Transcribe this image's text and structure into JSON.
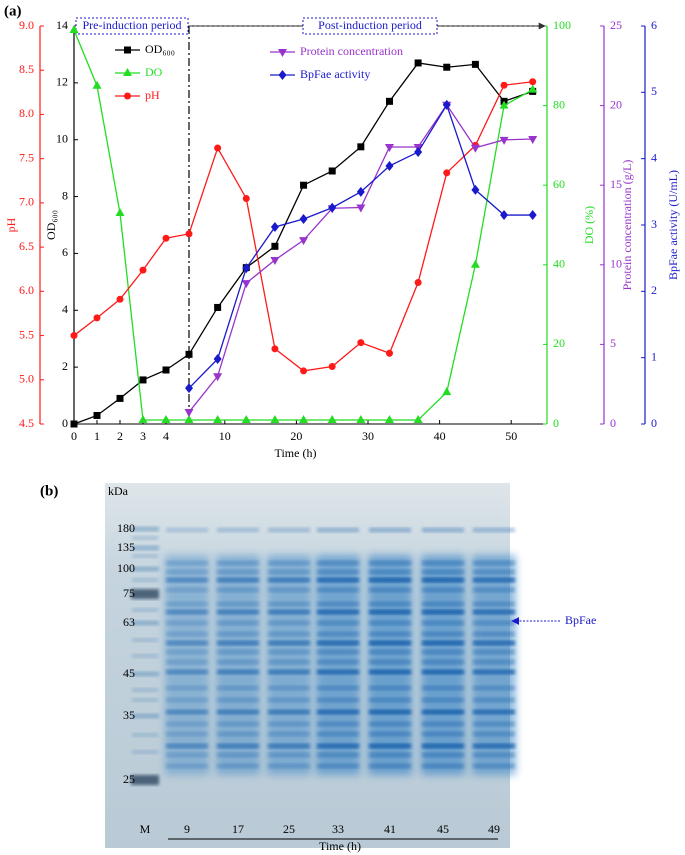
{
  "panel_labels": [
    "(a)",
    "(b)"
  ],
  "chart_data": {
    "type": "line",
    "x": [
      0,
      1,
      2,
      3,
      4,
      5,
      9,
      13,
      17,
      21,
      25,
      29,
      33,
      37,
      41,
      45,
      49,
      53
    ],
    "xlim": [
      0,
      55
    ],
    "x_break": 5,
    "xticks": [
      0,
      1,
      2,
      3,
      4,
      10,
      20,
      30,
      40,
      50
    ],
    "xlabel": "Time (h)",
    "axes": [
      {
        "id": "ph",
        "label": "pH",
        "color": "#ff1a1a",
        "lim": [
          4.5,
          9
        ],
        "ticks": [
          4.5,
          {
            "value": 5,
            "label": "5.0"
          },
          5.5,
          {
            "value": 6,
            "label": "6.0"
          },
          6.5,
          {
            "value": 7,
            "label": "7.0"
          },
          7.5,
          {
            "value": 8,
            "label": "8.0"
          },
          8.5,
          {
            "value": 9,
            "label": "9.0"
          }
        ]
      },
      {
        "id": "od",
        "label": "OD₆₀₀",
        "color": "#000000",
        "lim": [
          0,
          14
        ],
        "ticks": [
          0,
          2,
          4,
          6,
          8,
          10,
          12,
          14
        ]
      },
      {
        "id": "do",
        "label": "DO (%)",
        "color": "#22dd22",
        "lim": [
          0,
          100
        ],
        "ticks": [
          0,
          20,
          40,
          60,
          80,
          100
        ]
      },
      {
        "id": "protein",
        "label": "Protein concentration (g/L)",
        "color": "#9933cc",
        "lim": [
          0,
          25
        ],
        "ticks": [
          0,
          5,
          10,
          15,
          20,
          25
        ]
      },
      {
        "id": "bpfae",
        "label": "BpFae activity (U/mL)",
        "color": "#1a1acc",
        "lim": [
          0,
          6
        ],
        "ticks": [
          0,
          1,
          2,
          3,
          4,
          5,
          6
        ]
      }
    ],
    "series": [
      {
        "name": "OD₆₀₀",
        "axis": "od",
        "color": "#000000",
        "marker": "square",
        "values": [
          0,
          0.3,
          0.9,
          1.55,
          1.9,
          2.45,
          4.1,
          5.5,
          6.25,
          8.4,
          8.9,
          9.75,
          11.35,
          12.7,
          12.55,
          12.65,
          11.35,
          11.7
        ]
      },
      {
        "name": "DO",
        "axis": "do",
        "color": "#22dd22",
        "marker": "triangle-up",
        "values": [
          99,
          85,
          53,
          1,
          1,
          1,
          1,
          1,
          1,
          1,
          1,
          1,
          1,
          1,
          8,
          40,
          80,
          84
        ]
      },
      {
        "name": "pH",
        "axis": "ph",
        "color": "#ff1a1a",
        "marker": "circle",
        "values": [
          5.5,
          5.7,
          5.91,
          6.24,
          6.6,
          6.65,
          7.62,
          7.05,
          5.35,
          5.1,
          5.15,
          5.42,
          5.3,
          6.1,
          7.34,
          7.65,
          8.33,
          8.37
        ]
      },
      {
        "name": "Protein concentration",
        "axis": "protein",
        "color": "#9933cc",
        "marker": "triangle-down",
        "values": [
          null,
          null,
          null,
          null,
          null,
          0.75,
          3.0,
          8.85,
          10.3,
          11.55,
          13.55,
          13.6,
          17.4,
          17.4,
          20.05,
          17.35,
          17.85,
          17.9
        ]
      },
      {
        "name": "BpFae activity",
        "axis": "bpfae",
        "color": "#1a1acc",
        "marker": "diamond",
        "values": [
          null,
          null,
          null,
          null,
          null,
          0.54,
          0.98,
          2.35,
          2.97,
          3.09,
          3.26,
          3.5,
          3.89,
          4.1,
          4.81,
          3.53,
          3.15,
          3.15
        ]
      }
    ],
    "annotations": [
      "Pre-induction period",
      "Post-induction period"
    ]
  },
  "gel": {
    "unit": "kDa",
    "markers": [
      180,
      135,
      100,
      75,
      63,
      45,
      35,
      25
    ],
    "lanes": [
      "M",
      "9",
      "17",
      "25",
      "33",
      "41",
      "45",
      "49"
    ],
    "xlabel": "Time (h)",
    "arrow_label": "BpFae"
  }
}
